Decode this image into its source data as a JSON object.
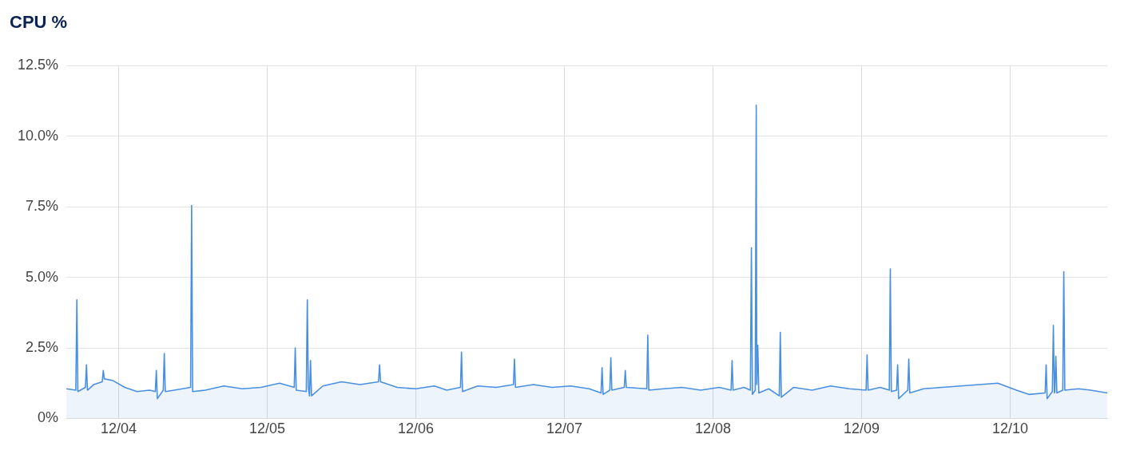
{
  "chart_data": {
    "type": "area",
    "title": "CPU %",
    "xlim": [
      "--12-03T15:34",
      "--12-10T15:40"
    ],
    "xticks": [
      {
        "value": "--12-04",
        "label": "12/04"
      },
      {
        "value": "--12-05",
        "label": "12/05"
      },
      {
        "value": "--12-06",
        "label": "12/06"
      },
      {
        "value": "--12-07",
        "label": "12/07"
      },
      {
        "value": "--12-08",
        "label": "12/08"
      },
      {
        "value": "--12-09",
        "label": "12/09"
      },
      {
        "value": "--12-10",
        "label": "12/10"
      }
    ],
    "ylim": [
      0,
      12.5
    ],
    "yticks": [
      {
        "value": 0,
        "label": "0%"
      },
      {
        "value": 2.5,
        "label": "2.5%"
      },
      {
        "value": 5,
        "label": "5.0%"
      },
      {
        "value": 7.5,
        "label": "7.5%"
      },
      {
        "value": 10,
        "label": "10.0%"
      },
      {
        "value": 12.5,
        "label": "12.5%"
      }
    ],
    "grid": true,
    "legend": false,
    "marker": "none",
    "line_style": "solid",
    "x": [
      "--12-03T15:34",
      "--12-03T17:06",
      "--12-03T17:16",
      "--12-03T17:26",
      "--12-03T18:39",
      "--12-03T18:49",
      "--12-03T18:59",
      "--12-03T20:00",
      "--12-03T21:22",
      "--12-03T21:32",
      "--12-03T21:42",
      "--12-03T23:00",
      "--12-04T01:00",
      "--12-04T03:00",
      "--12-04T05:00",
      "--12-04T05:56",
      "--12-04T06:06",
      "--12-04T06:16",
      "--12-04T07:13",
      "--12-04T07:23",
      "--12-04T07:33",
      "--12-04T09:00",
      "--12-04T11:38",
      "--12-04T11:48",
      "--12-04T11:58",
      "--12-04T14:00",
      "--12-04T17:00",
      "--12-04T20:00",
      "--12-04T23:00",
      "--12-05T02:00",
      "--12-05T04:22",
      "--12-05T04:32",
      "--12-05T04:42",
      "--12-05T06:19",
      "--12-05T06:29",
      "--12-05T06:39",
      "--12-05T06:50",
      "--12-05T07:00",
      "--12-05T07:10",
      "--12-05T09:00",
      "--12-05T12:00",
      "--12-05T15:00",
      "--12-05T17:59",
      "--12-05T18:09",
      "--12-05T18:19",
      "--12-05T21:00",
      "--12-06T00:00",
      "--12-06T03:00",
      "--12-06T05:00",
      "--12-06T07:13",
      "--12-06T07:23",
      "--12-06T07:33",
      "--12-06T10:00",
      "--12-06T13:00",
      "--12-06T15:46",
      "--12-06T15:56",
      "--12-06T16:06",
      "--12-06T19:00",
      "--12-06T22:00",
      "--12-07T01:00",
      "--12-07T04:00",
      "--12-07T05:55",
      "--12-07T06:05",
      "--12-07T06:15",
      "--12-07T07:20",
      "--12-07T07:30",
      "--12-07T07:40",
      "--12-07T09:40",
      "--12-07T09:50",
      "--12-07T10:00",
      "--12-07T13:18",
      "--12-07T13:28",
      "--12-07T13:38",
      "--12-07T16:00",
      "--12-07T19:00",
      "--12-07T22:00",
      "--12-08T01:00",
      "--12-08T02:55",
      "--12-08T03:05",
      "--12-08T03:15",
      "--12-08T05:00",
      "--12-08T06:02",
      "--12-08T06:12",
      "--12-08T06:22",
      "--12-08T06:49",
      "--12-08T06:59",
      "--12-08T07:04",
      "--12-08T07:14",
      "--12-08T07:24",
      "--12-08T09:00",
      "--12-08T10:42",
      "--12-08T10:52",
      "--12-08T11:02",
      "--12-08T13:00",
      "--12-08T16:00",
      "--12-08T19:00",
      "--12-08T22:00",
      "--12-09T00:43",
      "--12-09T00:53",
      "--12-09T01:03",
      "--12-09T03:00",
      "--12-09T04:28",
      "--12-09T04:38",
      "--12-09T04:48",
      "--12-09T05:39",
      "--12-09T05:49",
      "--12-09T05:59",
      "--12-09T07:27",
      "--12-09T07:37",
      "--12-09T07:47",
      "--12-09T10:00",
      "--12-09T13:00",
      "--12-09T16:00",
      "--12-09T19:00",
      "--12-09T22:00",
      "--12-10T01:00",
      "--12-10T03:00",
      "--12-10T05:38",
      "--12-10T05:48",
      "--12-10T05:58",
      "--12-10T06:48",
      "--12-10T06:58",
      "--12-10T07:08",
      "--12-10T07:12",
      "--12-10T07:22",
      "--12-10T07:32",
      "--12-10T08:29",
      "--12-10T08:39",
      "--12-10T08:49",
      "--12-10T11:00",
      "--12-10T13:00",
      "--12-10T15:40"
    ],
    "series": [
      {
        "color": "#4a90e2",
        "values": [
          1.05,
          1.0,
          4.2,
          0.95,
          1.1,
          1.9,
          1.0,
          1.2,
          1.3,
          1.7,
          1.4,
          1.35,
          1.1,
          0.95,
          1.0,
          0.95,
          1.7,
          0.7,
          1.0,
          2.3,
          0.95,
          1.0,
          1.1,
          7.55,
          0.95,
          1.0,
          1.15,
          1.05,
          1.1,
          1.25,
          1.1,
          2.5,
          1.0,
          0.95,
          4.2,
          1.1,
          0.8,
          2.05,
          0.8,
          1.15,
          1.3,
          1.2,
          1.3,
          1.9,
          1.3,
          1.1,
          1.05,
          1.15,
          1.0,
          1.1,
          2.35,
          0.95,
          1.15,
          1.1,
          1.2,
          2.1,
          1.1,
          1.2,
          1.1,
          1.15,
          1.05,
          0.9,
          1.8,
          0.85,
          1.0,
          2.15,
          1.0,
          1.1,
          1.7,
          1.1,
          1.05,
          2.95,
          1.0,
          1.05,
          1.1,
          1.0,
          1.1,
          1.0,
          2.05,
          1.0,
          1.1,
          1.0,
          6.05,
          0.85,
          1.0,
          11.1,
          1.2,
          2.6,
          0.9,
          1.05,
          0.8,
          3.05,
          0.75,
          1.1,
          1.0,
          1.15,
          1.05,
          1.0,
          2.25,
          1.0,
          1.1,
          1.0,
          5.3,
          0.95,
          1.0,
          1.9,
          0.7,
          1.0,
          2.1,
          0.9,
          1.05,
          1.1,
          1.15,
          1.2,
          1.25,
          1.0,
          0.85,
          0.9,
          1.9,
          0.7,
          0.95,
          3.3,
          0.9,
          0.95,
          2.2,
          0.9,
          1.0,
          5.2,
          1.0,
          1.05,
          1.0,
          0.9
        ]
      }
    ]
  }
}
